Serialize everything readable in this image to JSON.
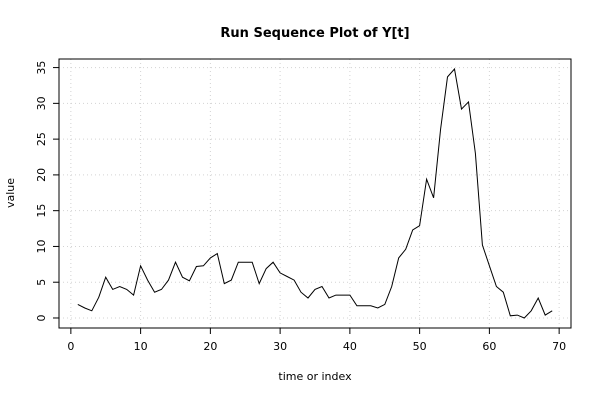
{
  "chart_data": {
    "type": "line",
    "title": "Run Sequence Plot of Y[t]",
    "xlabel": "time or index",
    "ylabel": "value",
    "xlim": [
      -1.7,
      71.7
    ],
    "ylim": [
      -1.4,
      36.2
    ],
    "x_ticks": [
      0,
      10,
      20,
      30,
      40,
      50,
      60,
      70
    ],
    "y_ticks": [
      0,
      5,
      10,
      15,
      20,
      25,
      30,
      35
    ],
    "grid": true,
    "legend": "none",
    "line_color": "#000000",
    "grid_color": "#d3d3d3",
    "series": [
      {
        "x": [
          1,
          2,
          3,
          4,
          5,
          6,
          7,
          8,
          9,
          10,
          11,
          12,
          13,
          14,
          15,
          16,
          17,
          18,
          19,
          20,
          21,
          22,
          23,
          24,
          25,
          26,
          27,
          28,
          29,
          30,
          31,
          32,
          33,
          34,
          35,
          36,
          37,
          38,
          39,
          40,
          41,
          42,
          43,
          44,
          45,
          46,
          47,
          48,
          49,
          50,
          51,
          52,
          53,
          54,
          55,
          56,
          57,
          58,
          59,
          60,
          61,
          62,
          63,
          64,
          65,
          66,
          67,
          68,
          69
        ],
        "values": [
          1.9,
          1.4,
          1.0,
          2.9,
          5.7,
          4.0,
          4.4,
          4.0,
          3.2,
          7.3,
          5.3,
          3.6,
          4.0,
          5.3,
          7.8,
          5.7,
          5.2,
          7.2,
          7.3,
          8.4,
          9.0,
          4.8,
          5.3,
          7.8,
          7.8,
          7.8,
          4.8,
          6.9,
          7.8,
          6.3,
          5.8,
          5.3,
          3.6,
          2.8,
          4.0,
          4.4,
          2.8,
          3.2,
          3.2,
          3.2,
          1.7,
          1.7,
          1.7,
          1.4,
          1.9,
          4.4,
          8.4,
          9.6,
          12.3,
          12.9,
          19.4,
          16.8,
          26.4,
          33.7,
          34.8,
          29.2,
          30.2,
          23.0,
          10.2,
          7.3,
          4.4,
          3.6,
          0.3,
          0.4,
          0.0,
          1.0,
          2.8,
          0.4,
          1.0
        ]
      }
    ]
  }
}
